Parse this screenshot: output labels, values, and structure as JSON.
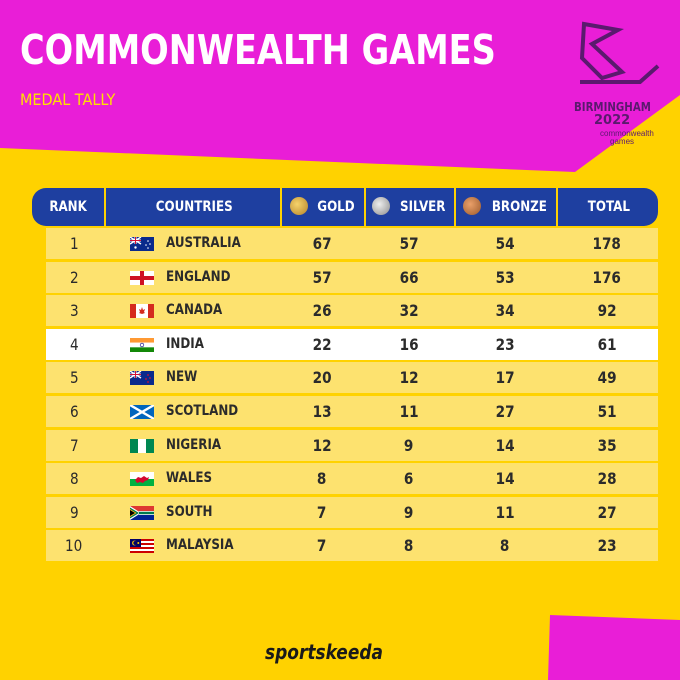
{
  "header": {
    "title": "COMMONWEALTH GAMES",
    "subtitle": "MEDAL TALLY"
  },
  "logo": {
    "line1": "BIRMINGHAM",
    "line2": "2022",
    "line3a": "commonwealth",
    "line3b": "games"
  },
  "colors": {
    "background": "#FFD200",
    "accent": "#E91ED7",
    "header_row": "#1e3fa0",
    "row": "#FDE26F",
    "highlight_row": "#ffffff"
  },
  "table": {
    "columns": {
      "rank": "RANK",
      "countries": "COUNTRIES",
      "gold": "GOLD",
      "silver": "SILVER",
      "bronze": "BRONZE",
      "total": "TOTAL"
    },
    "rows": [
      {
        "rank": "1",
        "country": "AUSTRALIA",
        "flag": "australia-flag-icon",
        "gold": "67",
        "silver": "57",
        "bronze": "54",
        "total": "178"
      },
      {
        "rank": "2",
        "country": "ENGLAND",
        "flag": "england-flag-icon",
        "gold": "57",
        "silver": "66",
        "bronze": "53",
        "total": "176"
      },
      {
        "rank": "3",
        "country": "CANADA",
        "flag": "canada-flag-icon",
        "gold": "26",
        "silver": "32",
        "bronze": "34",
        "total": "92"
      },
      {
        "rank": "4",
        "country": "INDIA",
        "flag": "india-flag-icon",
        "gold": "22",
        "silver": "16",
        "bronze": "23",
        "total": "61"
      },
      {
        "rank": "5",
        "country": "NEW ZEALAND",
        "flag": "new-zealand-flag-icon",
        "gold": "20",
        "silver": "12",
        "bronze": "17",
        "total": "49"
      },
      {
        "rank": "6",
        "country": "SCOTLAND",
        "flag": "scotland-flag-icon",
        "gold": "13",
        "silver": "11",
        "bronze": "27",
        "total": "51"
      },
      {
        "rank": "7",
        "country": "NIGERIA",
        "flag": "nigeria-flag-icon",
        "gold": "12",
        "silver": "9",
        "bronze": "14",
        "total": "35"
      },
      {
        "rank": "8",
        "country": "WALES",
        "flag": "wales-flag-icon",
        "gold": "8",
        "silver": "6",
        "bronze": "14",
        "total": "28"
      },
      {
        "rank": "9",
        "country": "SOUTH AFRICA",
        "flag": "south-africa-flag-icon",
        "gold": "7",
        "silver": "9",
        "bronze": "11",
        "total": "27"
      },
      {
        "rank": "10",
        "country": "MALAYSIA",
        "flag": "malaysia-flag-icon",
        "gold": "7",
        "silver": "8",
        "bronze": "8",
        "total": "23"
      }
    ]
  },
  "footer": {
    "brand": "sportskeeda"
  }
}
